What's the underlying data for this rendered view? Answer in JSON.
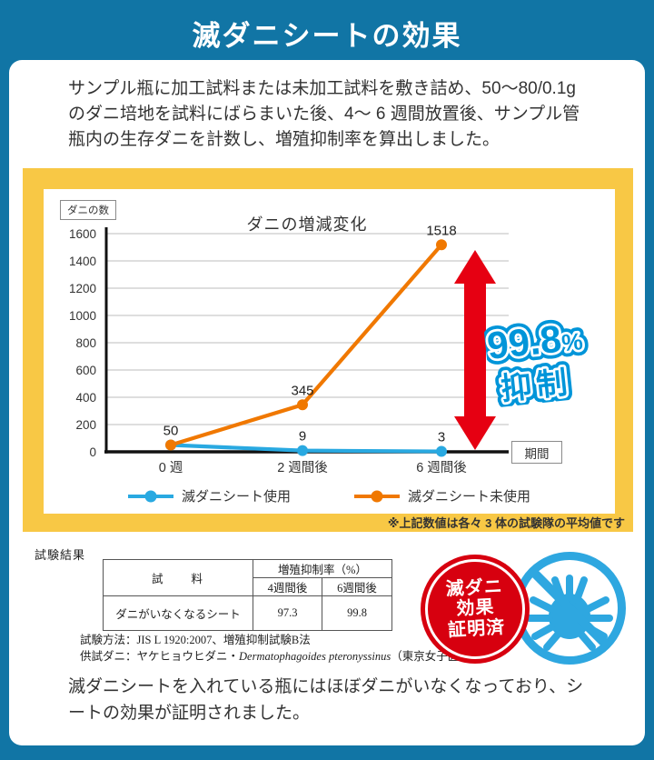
{
  "page": {
    "title": "滅ダニシートの効果",
    "description": "サンプル瓶に加工試料または未加工試料を敷き詰め、50〜80/0.1g のダニ培地を試料にばらまいた後、4〜 6 週間放置後、サンプル管瓶内の生存ダニを計数し、増殖抑制率を算出しました。",
    "conclusion": "滅ダニシートを入れている瓶にはほぼダニがいなくなっており、シートの効果が証明されました。"
  },
  "chart_data": {
    "type": "line",
    "title": "ダニの増減変化",
    "y_axis_label": "ダニの数",
    "x_axis_label": "期間",
    "categories": [
      "0 週",
      "2 週間後",
      "6 週間後"
    ],
    "series": [
      {
        "name": "滅ダニシート使用",
        "color": "#29a9e1",
        "values": [
          50,
          9,
          3
        ],
        "labels": [
          "",
          "9",
          "3"
        ]
      },
      {
        "name": "滅ダニシート未使用",
        "color": "#f07800",
        "values": [
          50,
          345,
          1518
        ],
        "labels": [
          "50",
          "345",
          "1518"
        ]
      }
    ],
    "ylim": [
      0,
      1600
    ],
    "y_ticks": [
      0,
      200,
      400,
      600,
      800,
      1000,
      1200,
      1400,
      1600
    ],
    "grid": true,
    "legend_position": "bottom"
  },
  "annotation": {
    "percent": "99.8",
    "percent_mark": "%",
    "label": "抑制",
    "arrow_color": "#e60012",
    "text_color": "#0095d9",
    "outline_color": "#ffffff"
  },
  "note": "※上記数値は各々 3 体の試験隊の平均値です",
  "results": {
    "heading": "試験結果",
    "table": {
      "sample_header": "試　　料",
      "rate_header": "増殖抑制率（%）",
      "col_headers": [
        "4週間後",
        "6週間後"
      ],
      "row": {
        "sample": "ダニがいなくなるシート",
        "values": [
          "97.3",
          "99.8"
        ]
      }
    },
    "method": "試験方法：JIS L 1920:2007、増殖抑制試験B法",
    "mite_pre": "供試ダニ：ヤケヒョウヒダニ・",
    "mite_latin": "Dermatophagoides pteronyssinus",
    "mite_post": "（東京女子医大系）"
  },
  "badge": {
    "line1": "滅ダニ",
    "line2": "効果",
    "line3": "証明済",
    "color": "#d7000f"
  },
  "prohibition": {
    "color": "#2ea7e0"
  },
  "colors": {
    "background": "#1175a5",
    "panel": "#f8c845",
    "grid": "#c9c9c9",
    "axis": "#111111"
  }
}
